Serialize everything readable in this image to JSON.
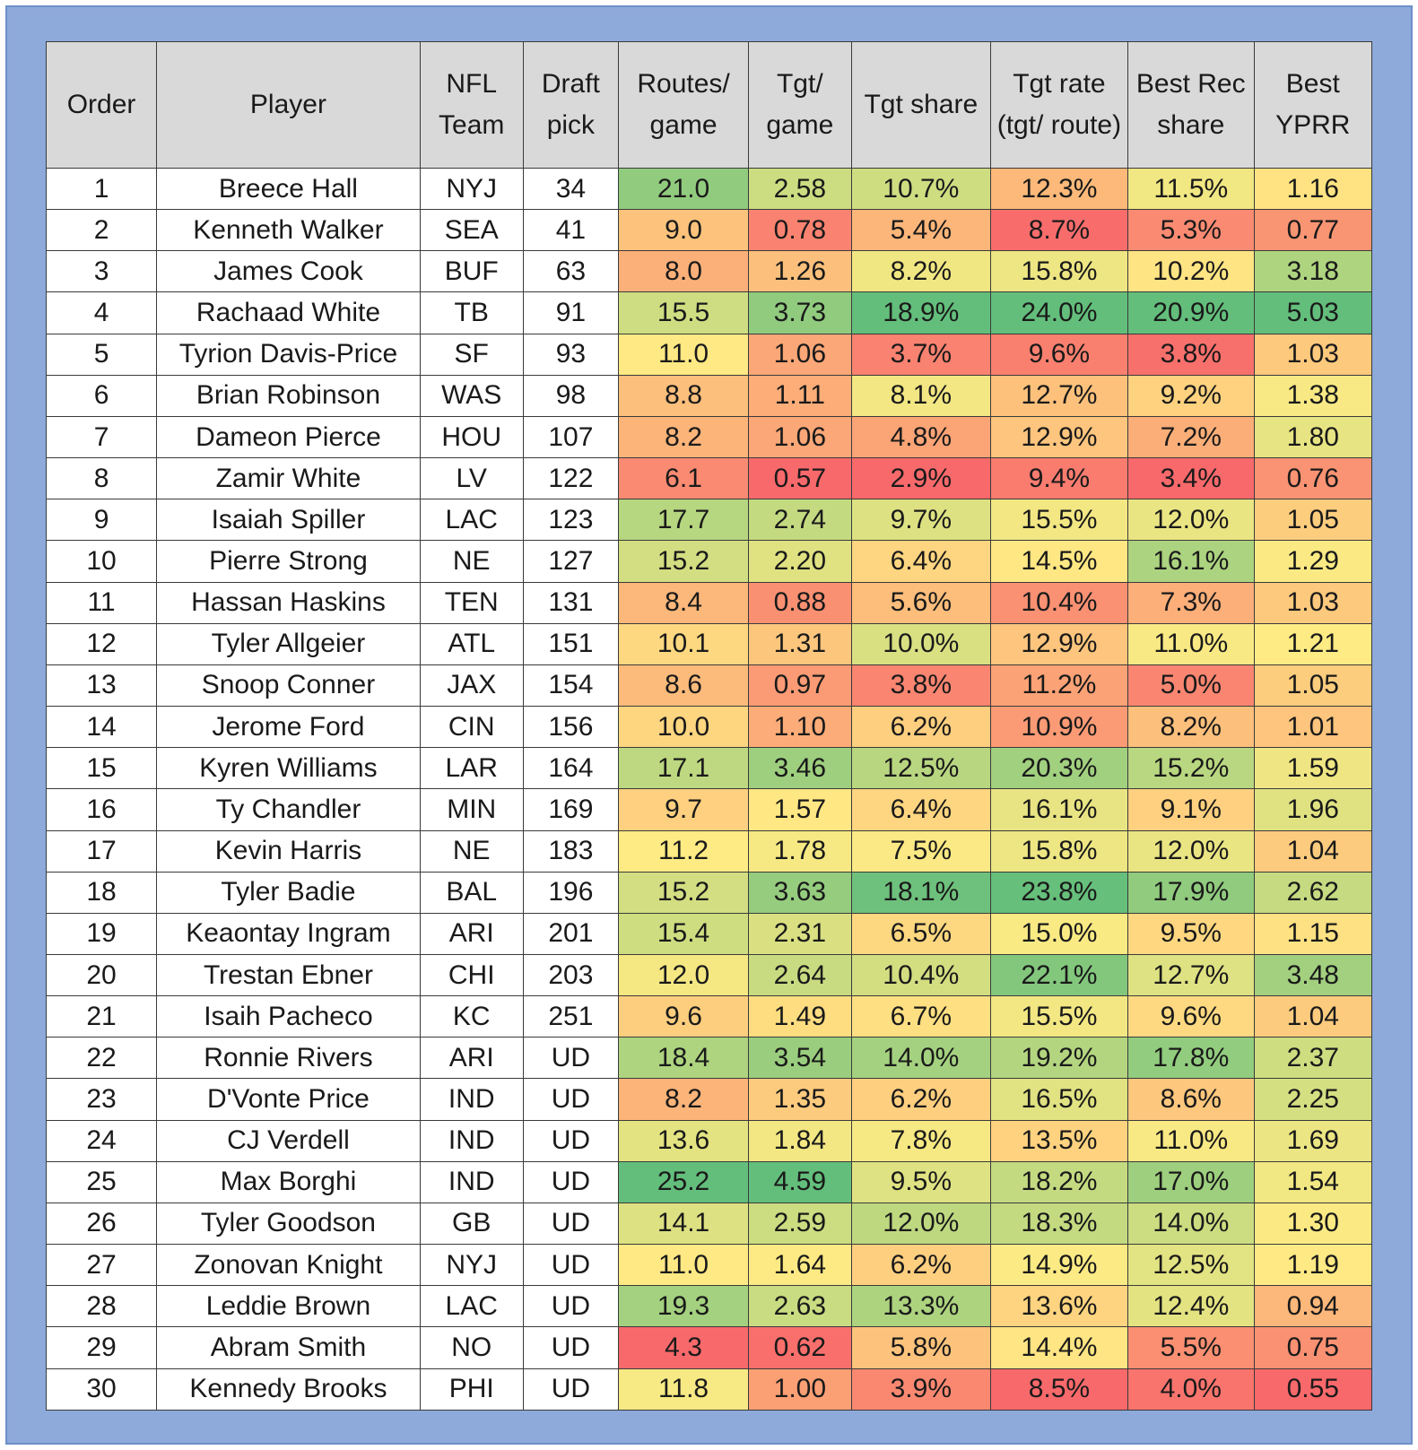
{
  "chart_data": {
    "type": "table",
    "columns": [
      {
        "key": "order",
        "label": "Order"
      },
      {
        "key": "player",
        "label": "Player"
      },
      {
        "key": "team",
        "label": "NFL Team"
      },
      {
        "key": "pick",
        "label": "Draft pick"
      },
      {
        "key": "routes",
        "label": "Routes/ game",
        "format": "fixed1",
        "heat": true
      },
      {
        "key": "tgt_game",
        "label": "Tgt/ game",
        "format": "fixed2",
        "heat": true
      },
      {
        "key": "tgt_share",
        "label": "Tgt share",
        "format": "pct1",
        "heat": true
      },
      {
        "key": "tgt_rate",
        "label": "Tgt rate (tgt/ route)",
        "format": "pct1",
        "heat": true
      },
      {
        "key": "rec_share",
        "label": "Best Rec share",
        "format": "pct1",
        "heat": true
      },
      {
        "key": "yprr",
        "label": "Best YPRR",
        "format": "fixed2",
        "heat": true
      }
    ],
    "heat_colors": {
      "low": "#f8696b",
      "mid": "#ffeb84",
      "high": "#63be7b"
    },
    "rows": [
      {
        "order": 1,
        "player": "Breece Hall",
        "team": "NYJ",
        "pick": "34",
        "routes": 21.0,
        "tgt_game": 2.58,
        "tgt_share": 10.7,
        "tgt_rate": 12.3,
        "rec_share": 11.5,
        "yprr": 1.16
      },
      {
        "order": 2,
        "player": "Kenneth Walker",
        "team": "SEA",
        "pick": "41",
        "routes": 9.0,
        "tgt_game": 0.78,
        "tgt_share": 5.4,
        "tgt_rate": 8.7,
        "rec_share": 5.3,
        "yprr": 0.77
      },
      {
        "order": 3,
        "player": "James Cook",
        "team": "BUF",
        "pick": "63",
        "routes": 8.0,
        "tgt_game": 1.26,
        "tgt_share": 8.2,
        "tgt_rate": 15.8,
        "rec_share": 10.2,
        "yprr": 3.18
      },
      {
        "order": 4,
        "player": "Rachaad White",
        "team": "TB",
        "pick": "91",
        "routes": 15.5,
        "tgt_game": 3.73,
        "tgt_share": 18.9,
        "tgt_rate": 24.0,
        "rec_share": 20.9,
        "yprr": 5.03
      },
      {
        "order": 5,
        "player": "Tyrion Davis-Price",
        "team": "SF",
        "pick": "93",
        "routes": 11.0,
        "tgt_game": 1.06,
        "tgt_share": 3.7,
        "tgt_rate": 9.6,
        "rec_share": 3.8,
        "yprr": 1.03
      },
      {
        "order": 6,
        "player": "Brian Robinson",
        "team": "WAS",
        "pick": "98",
        "routes": 8.8,
        "tgt_game": 1.11,
        "tgt_share": 8.1,
        "tgt_rate": 12.7,
        "rec_share": 9.2,
        "yprr": 1.38
      },
      {
        "order": 7,
        "player": "Dameon Pierce",
        "team": "HOU",
        "pick": "107",
        "routes": 8.2,
        "tgt_game": 1.06,
        "tgt_share": 4.8,
        "tgt_rate": 12.9,
        "rec_share": 7.2,
        "yprr": 1.8
      },
      {
        "order": 8,
        "player": "Zamir White",
        "team": "LV",
        "pick": "122",
        "routes": 6.1,
        "tgt_game": 0.57,
        "tgt_share": 2.9,
        "tgt_rate": 9.4,
        "rec_share": 3.4,
        "yprr": 0.76
      },
      {
        "order": 9,
        "player": "Isaiah Spiller",
        "team": "LAC",
        "pick": "123",
        "routes": 17.7,
        "tgt_game": 2.74,
        "tgt_share": 9.7,
        "tgt_rate": 15.5,
        "rec_share": 12.0,
        "yprr": 1.05
      },
      {
        "order": 10,
        "player": "Pierre Strong",
        "team": "NE",
        "pick": "127",
        "routes": 15.2,
        "tgt_game": 2.2,
        "tgt_share": 6.4,
        "tgt_rate": 14.5,
        "rec_share": 16.1,
        "yprr": 1.29
      },
      {
        "order": 11,
        "player": "Hassan Haskins",
        "team": "TEN",
        "pick": "131",
        "routes": 8.4,
        "tgt_game": 0.88,
        "tgt_share": 5.6,
        "tgt_rate": 10.4,
        "rec_share": 7.3,
        "yprr": 1.03
      },
      {
        "order": 12,
        "player": "Tyler Allgeier",
        "team": "ATL",
        "pick": "151",
        "routes": 10.1,
        "tgt_game": 1.31,
        "tgt_share": 10.0,
        "tgt_rate": 12.9,
        "rec_share": 11.0,
        "yprr": 1.21
      },
      {
        "order": 13,
        "player": "Snoop Conner",
        "team": "JAX",
        "pick": "154",
        "routes": 8.6,
        "tgt_game": 0.97,
        "tgt_share": 3.8,
        "tgt_rate": 11.2,
        "rec_share": 5.0,
        "yprr": 1.05
      },
      {
        "order": 14,
        "player": "Jerome Ford",
        "team": "CIN",
        "pick": "156",
        "routes": 10.0,
        "tgt_game": 1.1,
        "tgt_share": 6.2,
        "tgt_rate": 10.9,
        "rec_share": 8.2,
        "yprr": 1.01
      },
      {
        "order": 15,
        "player": "Kyren Williams",
        "team": "LAR",
        "pick": "164",
        "routes": 17.1,
        "tgt_game": 3.46,
        "tgt_share": 12.5,
        "tgt_rate": 20.3,
        "rec_share": 15.2,
        "yprr": 1.59
      },
      {
        "order": 16,
        "player": "Ty Chandler",
        "team": "MIN",
        "pick": "169",
        "routes": 9.7,
        "tgt_game": 1.57,
        "tgt_share": 6.4,
        "tgt_rate": 16.1,
        "rec_share": 9.1,
        "yprr": 1.96
      },
      {
        "order": 17,
        "player": "Kevin Harris",
        "team": "NE",
        "pick": "183",
        "routes": 11.2,
        "tgt_game": 1.78,
        "tgt_share": 7.5,
        "tgt_rate": 15.8,
        "rec_share": 12.0,
        "yprr": 1.04
      },
      {
        "order": 18,
        "player": "Tyler Badie",
        "team": "BAL",
        "pick": "196",
        "routes": 15.2,
        "tgt_game": 3.63,
        "tgt_share": 18.1,
        "tgt_rate": 23.8,
        "rec_share": 17.9,
        "yprr": 2.62
      },
      {
        "order": 19,
        "player": "Keaontay Ingram",
        "team": "ARI",
        "pick": "201",
        "routes": 15.4,
        "tgt_game": 2.31,
        "tgt_share": 6.5,
        "tgt_rate": 15.0,
        "rec_share": 9.5,
        "yprr": 1.15
      },
      {
        "order": 20,
        "player": "Trestan Ebner",
        "team": "CHI",
        "pick": "203",
        "routes": 12.0,
        "tgt_game": 2.64,
        "tgt_share": 10.4,
        "tgt_rate": 22.1,
        "rec_share": 12.7,
        "yprr": 3.48
      },
      {
        "order": 21,
        "player": "Isaih Pacheco",
        "team": "KC",
        "pick": "251",
        "routes": 9.6,
        "tgt_game": 1.49,
        "tgt_share": 6.7,
        "tgt_rate": 15.5,
        "rec_share": 9.6,
        "yprr": 1.04
      },
      {
        "order": 22,
        "player": "Ronnie Rivers",
        "team": "ARI",
        "pick": "UD",
        "routes": 18.4,
        "tgt_game": 3.54,
        "tgt_share": 14.0,
        "tgt_rate": 19.2,
        "rec_share": 17.8,
        "yprr": 2.37
      },
      {
        "order": 23,
        "player": "D'Vonte Price",
        "team": "IND",
        "pick": "UD",
        "routes": 8.2,
        "tgt_game": 1.35,
        "tgt_share": 6.2,
        "tgt_rate": 16.5,
        "rec_share": 8.6,
        "yprr": 2.25
      },
      {
        "order": 24,
        "player": "CJ Verdell",
        "team": "IND",
        "pick": "UD",
        "routes": 13.6,
        "tgt_game": 1.84,
        "tgt_share": 7.8,
        "tgt_rate": 13.5,
        "rec_share": 11.0,
        "yprr": 1.69
      },
      {
        "order": 25,
        "player": "Max Borghi",
        "team": "IND",
        "pick": "UD",
        "routes": 25.2,
        "tgt_game": 4.59,
        "tgt_share": 9.5,
        "tgt_rate": 18.2,
        "rec_share": 17.0,
        "yprr": 1.54
      },
      {
        "order": 26,
        "player": "Tyler Goodson",
        "team": "GB",
        "pick": "UD",
        "routes": 14.1,
        "tgt_game": 2.59,
        "tgt_share": 12.0,
        "tgt_rate": 18.3,
        "rec_share": 14.0,
        "yprr": 1.3
      },
      {
        "order": 27,
        "player": "Zonovan Knight",
        "team": "NYJ",
        "pick": "UD",
        "routes": 11.0,
        "tgt_game": 1.64,
        "tgt_share": 6.2,
        "tgt_rate": 14.9,
        "rec_share": 12.5,
        "yprr": 1.19
      },
      {
        "order": 28,
        "player": "Leddie Brown",
        "team": "LAC",
        "pick": "UD",
        "routes": 19.3,
        "tgt_game": 2.63,
        "tgt_share": 13.3,
        "tgt_rate": 13.6,
        "rec_share": 12.4,
        "yprr": 0.94
      },
      {
        "order": 29,
        "player": "Abram Smith",
        "team": "NO",
        "pick": "UD",
        "routes": 4.3,
        "tgt_game": 0.62,
        "tgt_share": 5.8,
        "tgt_rate": 14.4,
        "rec_share": 5.5,
        "yprr": 0.75
      },
      {
        "order": 30,
        "player": "Kennedy Brooks",
        "team": "PHI",
        "pick": "UD",
        "routes": 11.8,
        "tgt_game": 1.0,
        "tgt_share": 3.9,
        "tgt_rate": 8.5,
        "rec_share": 4.0,
        "yprr": 0.55
      }
    ]
  }
}
